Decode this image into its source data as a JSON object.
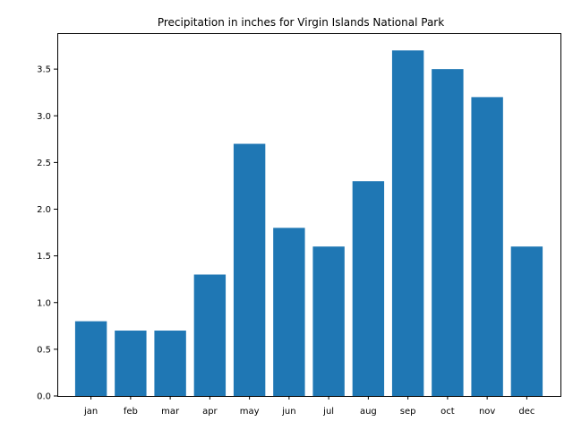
{
  "chart_data": {
    "type": "bar",
    "title": "Precipitation in inches for Virgin Islands National Park",
    "xlabel": "",
    "ylabel": "",
    "categories": [
      "jan",
      "feb",
      "mar",
      "apr",
      "may",
      "jun",
      "jul",
      "aug",
      "sep",
      "oct",
      "nov",
      "dec"
    ],
    "values": [
      0.8,
      0.7,
      0.7,
      1.3,
      2.7,
      1.8,
      1.6,
      2.3,
      3.7,
      3.5,
      3.2,
      1.6
    ],
    "ylim": [
      0,
      3.885
    ],
    "yticks": [
      "0.0",
      "0.5",
      "1.0",
      "1.5",
      "2.0",
      "2.5",
      "3.0",
      "3.5"
    ],
    "bar_color": "#1f77b4",
    "grid": false,
    "legend": "none"
  }
}
